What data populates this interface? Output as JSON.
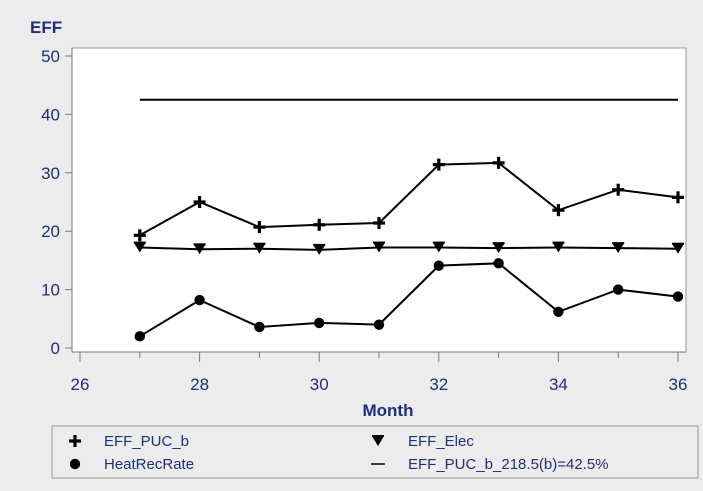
{
  "chart_data": {
    "type": "line",
    "title": "",
    "xlabel": "Month",
    "ylabel": "EFF",
    "xlim": [
      26,
      36
    ],
    "ylim": [
      0,
      50
    ],
    "x_ticks": [
      26,
      28,
      30,
      32,
      34,
      36
    ],
    "y_ticks": [
      0,
      10,
      20,
      30,
      40,
      50
    ],
    "grid": false,
    "legend_position": "bottom",
    "x": [
      27,
      28,
      29,
      30,
      31,
      32,
      33,
      34,
      35,
      36
    ],
    "series": [
      {
        "name": "EFF_PUC_b",
        "marker": "plus",
        "values": [
          19.3,
          25.0,
          20.7,
          21.1,
          21.4,
          31.4,
          31.7,
          23.6,
          27.1,
          25.8
        ]
      },
      {
        "name": "EFF_Elec",
        "marker": "triangle-down",
        "values": [
          17.2,
          16.9,
          17.0,
          16.8,
          17.2,
          17.2,
          17.1,
          17.2,
          17.1,
          17.0
        ]
      },
      {
        "name": "HeatRecRate",
        "marker": "circle",
        "values": [
          2.0,
          8.2,
          3.6,
          4.3,
          4.0,
          14.1,
          14.5,
          6.2,
          10.0,
          8.8
        ]
      },
      {
        "name": "EFF_PUC_b_218.5(b)=42.5%",
        "marker": "none",
        "values": [
          42.5,
          42.5,
          42.5,
          42.5,
          42.5,
          42.5,
          42.5,
          42.5,
          42.5,
          42.5
        ]
      }
    ],
    "legend_order": [
      "EFF_PUC_b",
      "EFF_Elec",
      "HeatRecRate",
      "EFF_PUC_b_218.5(b)=42.5%"
    ]
  },
  "colors": {
    "ink": "#000000",
    "text": "#1f2f7a",
    "plot_bg": "#ffffff",
    "page_bg": "#ececec",
    "frame": "#9a9a9a"
  }
}
